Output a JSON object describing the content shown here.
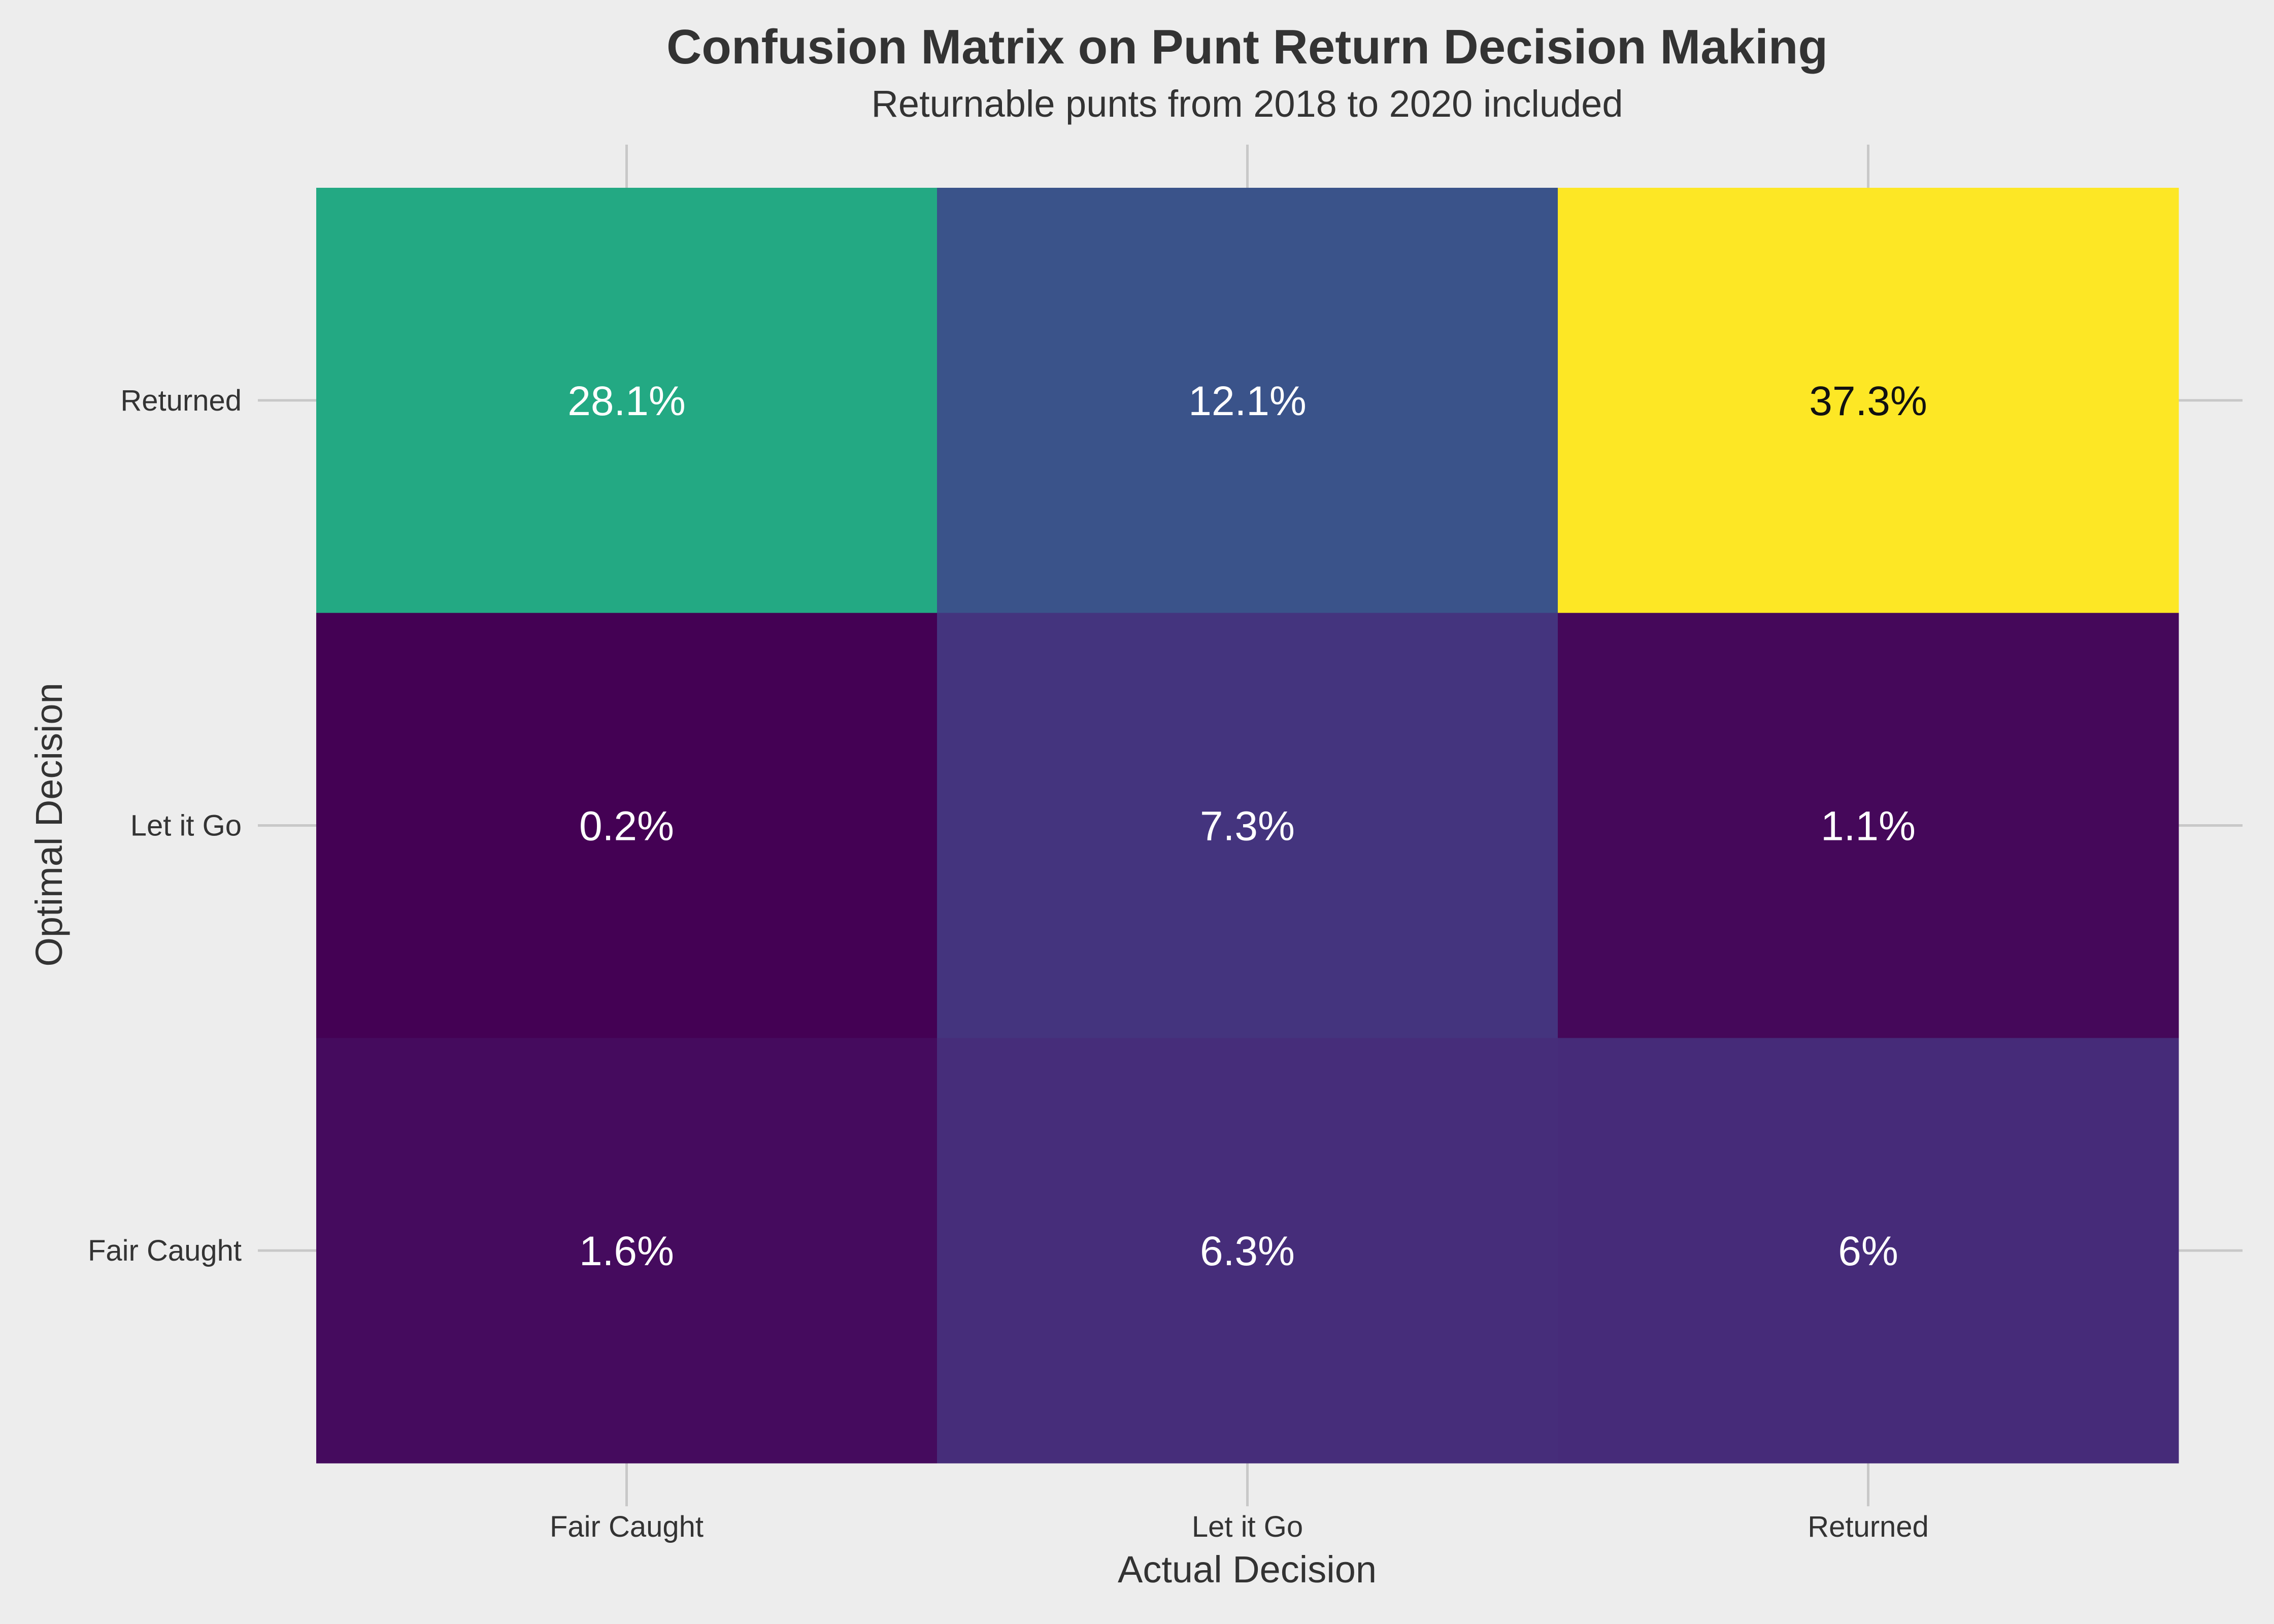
{
  "chart_data": {
    "type": "heatmap",
    "title": "Confusion Matrix on Punt Return Decision Making",
    "subtitle": "Returnable punts from 2018 to 2020 included",
    "xlabel": "Actual Decision",
    "ylabel": "Optimal Decision",
    "x_categories": [
      "Fair Caught",
      "Let it Go",
      "Returned"
    ],
    "y_categories": [
      "Returned",
      "Let it Go",
      "Fair Caught"
    ],
    "values": [
      [
        28.1,
        12.1,
        37.3
      ],
      [
        0.2,
        7.3,
        1.1
      ],
      [
        1.6,
        6.3,
        6.0
      ]
    ],
    "labels": [
      [
        "28.1%",
        "12.1%",
        "37.3%"
      ],
      [
        "0.2%",
        "7.3%",
        "1.1%"
      ],
      [
        "1.6%",
        "6.3%",
        "6%"
      ]
    ],
    "colormap": "viridis",
    "grid": true,
    "legend": "none"
  },
  "colors": {
    "background": "#ededed",
    "grid": "#c8c8c8",
    "text": "#333333"
  }
}
